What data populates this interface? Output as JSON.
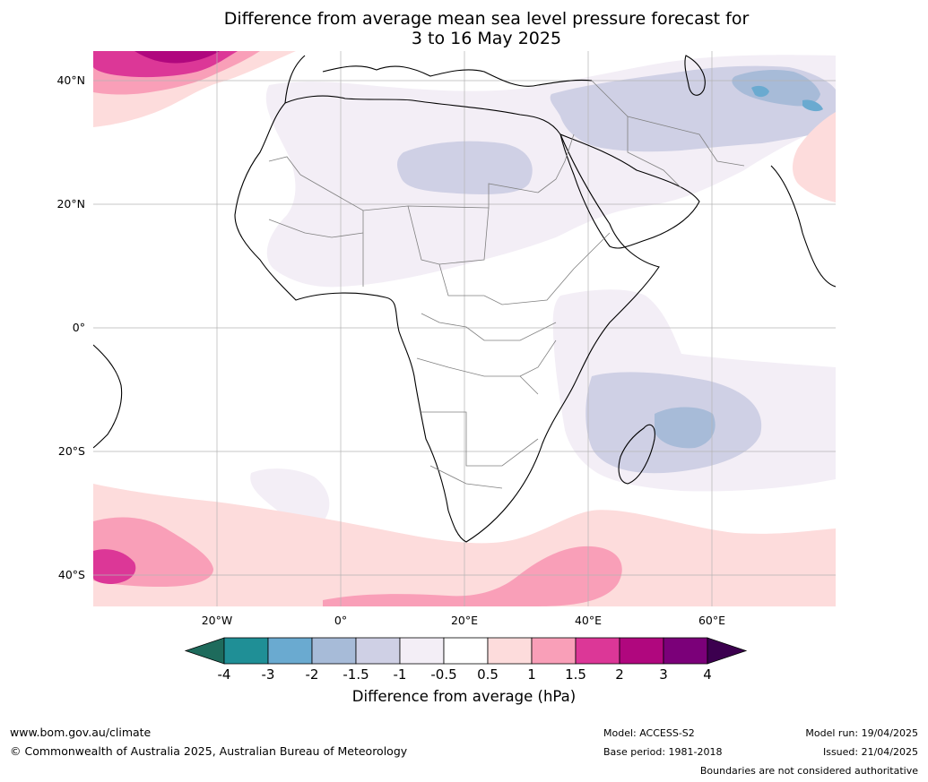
{
  "title_line1": "Difference from average mean sea level pressure forecast for",
  "title_line2": "3 to 16 May 2025",
  "lat_labels": [
    "40°N",
    "20°N",
    "0°",
    "20°S",
    "40°S"
  ],
  "lon_labels": [
    "20°W",
    "0°",
    "20°E",
    "40°E",
    "60°E"
  ],
  "colorbar": {
    "ticks": [
      "-4",
      "-3",
      "-2",
      "-1.5",
      "-1",
      "-0.5",
      "0.5",
      "1",
      "1.5",
      "2",
      "3",
      "4"
    ],
    "colors": [
      "#1e6b5c",
      "#1f8f96",
      "#6aaad0",
      "#a7bbd8",
      "#cfd0e5",
      "#f3eef6",
      "#ffffff",
      "#fddcdc",
      "#f99fb8",
      "#dc3797",
      "#b0077e",
      "#7b0079",
      "#3c004f"
    ],
    "label": "Difference from average (hPa)"
  },
  "footer": {
    "url": "www.bom.gov.au/climate",
    "copyright": "© Commonwealth of Australia 2025, Australian Bureau of Meteorology",
    "model": "Model: ACCESS-S2",
    "base_period": "Base period: 1981-2018",
    "model_run": "Model run: 19/04/2025",
    "issued": "Issued: 21/04/2025",
    "disclaimer": "Boundaries are not considered authoritative"
  }
}
